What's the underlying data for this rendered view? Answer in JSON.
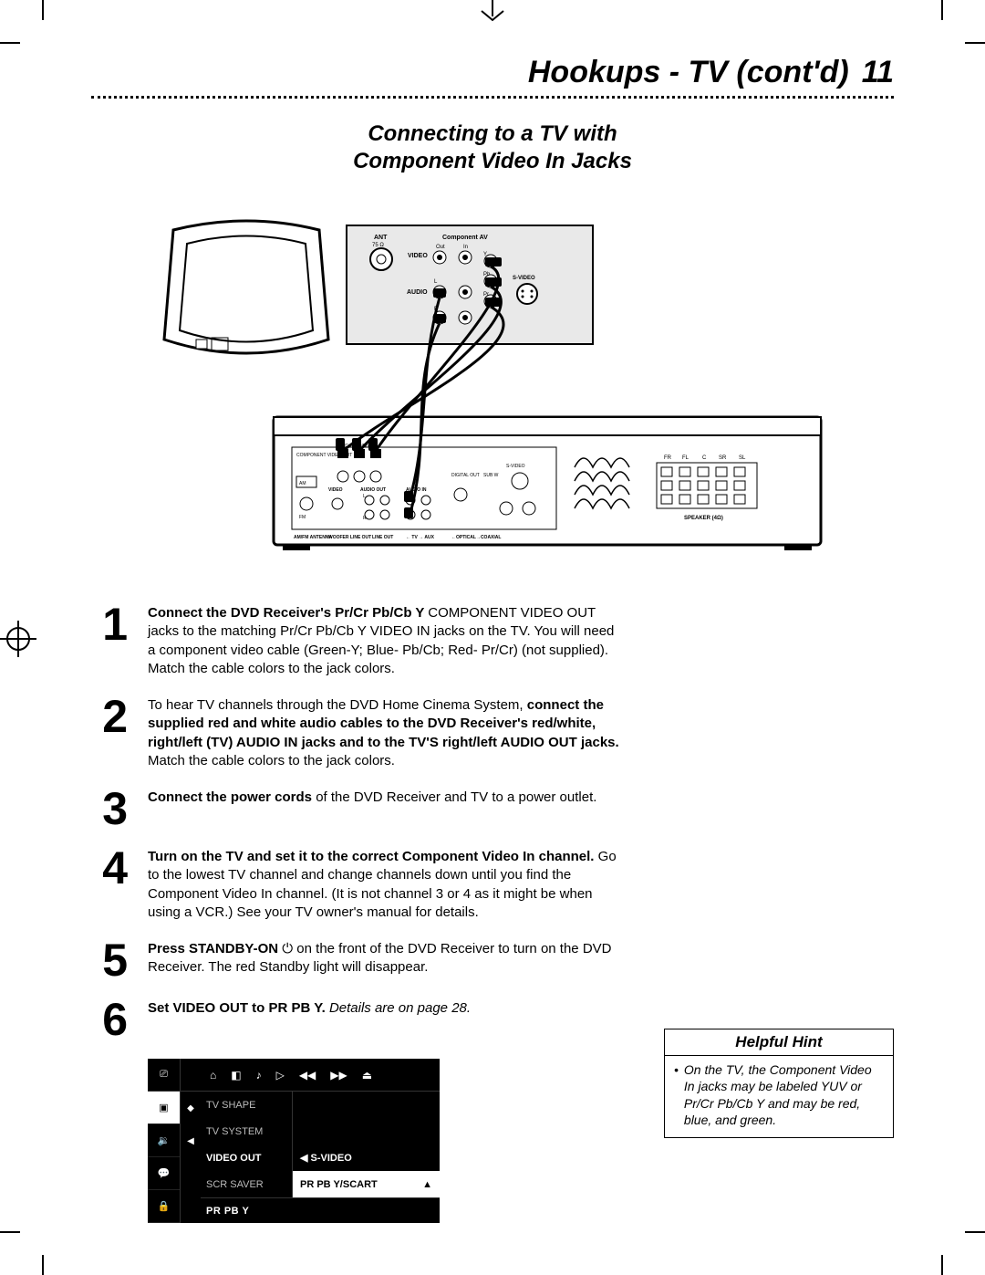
{
  "header": {
    "title": "Hookups - TV (cont'd)",
    "page_number": "11"
  },
  "subtitle_line1": "Connecting to a TV with",
  "subtitle_line2": "Component Video In Jacks",
  "diagram": {
    "tv_back": {
      "labels": {
        "ant": "ANT",
        "ant_sub": "75 Ω",
        "component_av": "Component AV",
        "video": "VIDEO",
        "out": "Out",
        "in": "In",
        "y": "Y",
        "pb": "Pb",
        "pr": "Pr",
        "audio": "AUDIO",
        "l": "L",
        "r": "R",
        "svideo": "S-VIDEO"
      },
      "jack_colors": {
        "y": "#00a000",
        "pb": "#0000ff",
        "pr": "#ff0000",
        "audio_l": "#ffffff",
        "audio_r": "#ff0000"
      }
    },
    "receiver_back": {
      "labels": {
        "component_video_out": "COMPONENT\nVIDEO OUT",
        "prcr": "Pr/Cr",
        "pbcb": "Pb/Cb",
        "y": "Y",
        "video": "VIDEO",
        "svideo": "S-VIDEO",
        "audio_out": "AUDIO OUT",
        "audio_in": "AUDIO IN",
        "l": "L",
        "r": "R",
        "line_out": "LINE OUT",
        "tv": "TV",
        "aux": "AUX",
        "digital_out": "DIGITAL\nOUT",
        "sub_w": "SUB W",
        "optical": "OPTICAL",
        "coaxial": "COAXIAL",
        "am": "AM",
        "fm": "FM\n75 Ω",
        "amfm_antenna": "AM/FM\nANTENNA",
        "woofer_line_out": "WOOFER\nLINE OUT",
        "speaker": "SPEAKER (4Ω)",
        "fr": "FR",
        "fl": "FL",
        "c": "C",
        "sr": "SR",
        "sl": "SL"
      }
    },
    "cables": [
      {
        "from": "receiver.prcr",
        "to": "tv.pr",
        "color": "#ff0000"
      },
      {
        "from": "receiver.pbcb",
        "to": "tv.pb",
        "color": "#0000ff"
      },
      {
        "from": "receiver.y",
        "to": "tv.y",
        "color": "#00a000"
      },
      {
        "from": "receiver.audio_in_l",
        "to": "tv.audio_out_l",
        "color": "#ffffff"
      },
      {
        "from": "receiver.audio_in_r",
        "to": "tv.audio_out_r",
        "color": "#ff0000"
      }
    ]
  },
  "steps": [
    {
      "n": "1",
      "parts": [
        {
          "b": true,
          "t": "Connect the DVD Receiver's Pr/Cr Pb/Cb Y "
        },
        {
          "b": false,
          "t": "COMPONENT VIDEO OUT jacks to the matching Pr/Cr Pb/Cb Y VIDEO IN jacks on the TV.  You will need a component video cable (Green-Y; Blue- Pb/Cb; Red- Pr/Cr) (not supplied). Match the cable colors to the jack colors."
        }
      ]
    },
    {
      "n": "2",
      "parts": [
        {
          "b": false,
          "t": "To hear TV channels through the DVD Home Cinema System, "
        },
        {
          "b": true,
          "t": "connect the supplied red and white audio cables to the DVD Receiver's red/white, right/left (TV) AUDIO IN jacks and to the TV'S right/left AUDIO OUT jacks. "
        },
        {
          "b": false,
          "t": "Match the cable colors to the jack colors."
        }
      ]
    },
    {
      "n": "3",
      "parts": [
        {
          "b": true,
          "t": "Connect the power cords "
        },
        {
          "b": false,
          "t": "of the DVD Receiver and TV to a power outlet."
        }
      ]
    },
    {
      "n": "4",
      "parts": [
        {
          "b": true,
          "t": "Turn on the TV and set it to the correct Component Video In channel. "
        },
        {
          "b": false,
          "t": "Go to the lowest TV channel and change channels down until you find the Component Video In channel. (It is not channel 3 or 4 as it might be when using a VCR.) See your TV owner's manual for details."
        }
      ]
    },
    {
      "n": "5",
      "parts": [
        {
          "b": true,
          "t": "Press STANDBY-ON "
        },
        {
          "icon": "power"
        },
        {
          "b": false,
          "t": " on the front of the DVD Receiver to turn on the DVD Receiver. The red Standby light will disappear."
        }
      ]
    },
    {
      "n": "6",
      "parts": [
        {
          "b": true,
          "t": "Set VIDEO OUT to PR PB Y. "
        },
        {
          "i": true,
          "t": "Details are on page 28."
        }
      ]
    }
  ],
  "osd": {
    "top_icons": [
      "setup",
      "disc",
      "audio-settings",
      "play",
      "rewind",
      "fast-forward",
      "stop-eject"
    ],
    "left_icons": [
      "picture",
      "speaker-prev",
      "subtitle",
      "lock"
    ],
    "left_selected_index": 0,
    "left_arrow_glyphs": {
      "up": "◆",
      "down": "◀"
    },
    "menu_items": [
      {
        "label": "TV SHAPE",
        "value": ""
      },
      {
        "label": "TV SYSTEM",
        "value": ""
      },
      {
        "label": "VIDEO OUT",
        "value": "S-VIDEO",
        "selected": true
      },
      {
        "label": "SCR SAVER",
        "value": "PR PB Y/SCART",
        "highlighted": true,
        "arrow": "▲"
      }
    ],
    "status": "PR PB Y",
    "value_arrow_glyph": "◀",
    "colors": {
      "bg": "#000000",
      "fg": "#ffffff",
      "dim": "#bbbbbb",
      "muted": "#888888",
      "border": "#333333"
    }
  },
  "hint": {
    "title": "Helpful Hint",
    "bullet": "•",
    "text": "On the TV, the Component Video In jacks may be labeled YUV or Pr/Cr Pb/Cb Y and may be red, blue, and green."
  }
}
